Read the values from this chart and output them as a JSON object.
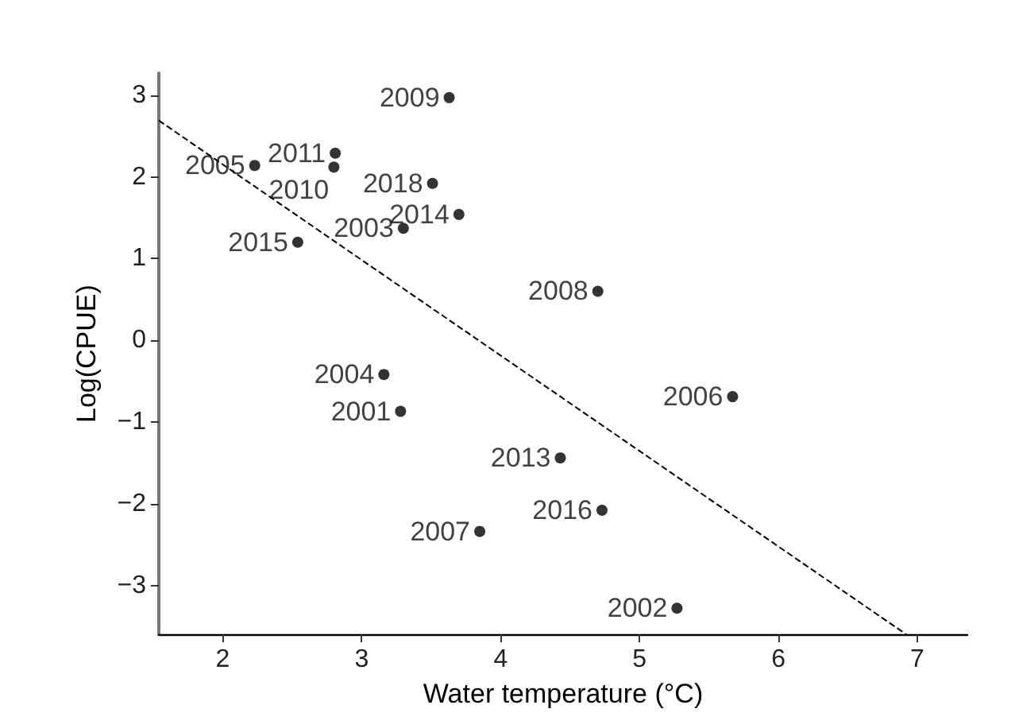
{
  "chart_data": {
    "type": "scatter",
    "xlabel": "Water temperature (°C)",
    "ylabel": "Log(CPUE)",
    "xlim": [
      1.54,
      7.36
    ],
    "ylim": [
      -3.6,
      3.27
    ],
    "xticks": [
      2,
      3,
      4,
      5,
      6,
      7
    ],
    "yticks": [
      -3,
      -2,
      -1,
      0,
      1,
      2,
      3
    ],
    "grid": false,
    "marker": "circle",
    "series": [
      {
        "color": "#000000",
        "x": [
          3.28,
          5.27,
          3.3,
          3.16,
          2.23,
          5.67,
          3.85,
          4.7,
          3.63,
          2.8,
          2.81,
          4.43,
          3.7,
          2.54,
          4.73,
          3.51
        ],
        "values": [
          -0.87,
          -3.28,
          1.37,
          -0.42,
          2.14,
          -0.69,
          -2.34,
          0.6,
          2.97,
          2.12,
          2.29,
          -1.44,
          1.54,
          1.2,
          -2.08,
          1.92
        ]
      },
      {
        "type": "line",
        "color": "#000000",
        "line_style": "dashed",
        "marker": "none",
        "x": [
          1.54,
          6.92
        ],
        "values": [
          2.69,
          -3.6
        ]
      }
    ],
    "annotations": [
      {
        "text": "2001",
        "x": 3.28,
        "y": -0.87
      },
      {
        "text": "2002",
        "x": 5.27,
        "y": -3.28
      },
      {
        "text": "2003",
        "x": 3.3,
        "y": 1.37
      },
      {
        "text": "2004",
        "x": 3.16,
        "y": -0.42
      },
      {
        "text": "2005",
        "x": 2.23,
        "y": 2.14
      },
      {
        "text": "2006",
        "x": 5.67,
        "y": -0.69
      },
      {
        "text": "2007",
        "x": 3.85,
        "y": -2.34
      },
      {
        "text": "2008",
        "x": 4.7,
        "y": 0.6
      },
      {
        "text": "2009",
        "x": 3.63,
        "y": 2.97
      },
      {
        "text": "2010",
        "x": 2.8,
        "y": 2.12
      },
      {
        "text": "2011",
        "x": 2.81,
        "y": 2.29
      },
      {
        "text": "2013",
        "x": 4.43,
        "y": -1.44
      },
      {
        "text": "2014",
        "x": 3.7,
        "y": 1.54
      },
      {
        "text": "2015",
        "x": 2.54,
        "y": 1.2
      },
      {
        "text": "2016",
        "x": 4.73,
        "y": -2.08
      },
      {
        "text": "2018",
        "x": 3.51,
        "y": 1.92
      }
    ]
  }
}
